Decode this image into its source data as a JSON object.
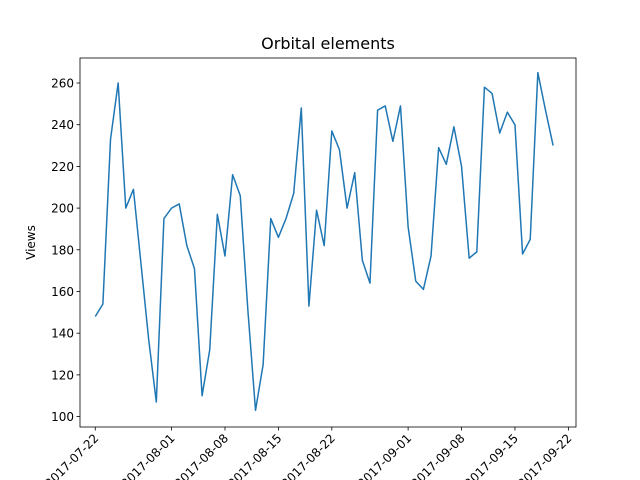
{
  "chart_data": {
    "type": "line",
    "title": "Orbital elements",
    "xlabel": "",
    "ylabel": "Views",
    "ylim": [
      95,
      272
    ],
    "xlim": [
      "2017-07-20",
      "2017-09-23"
    ],
    "grid": false,
    "x_ticks": [
      "2017-07-22",
      "2017-08-01",
      "2017-08-08",
      "2017-08-15",
      "2017-08-22",
      "2017-09-01",
      "2017-09-08",
      "2017-09-15",
      "2017-09-22"
    ],
    "y_ticks": [
      100,
      120,
      140,
      160,
      180,
      200,
      220,
      240,
      260
    ],
    "series": [
      {
        "color": "#1f77b4",
        "x": [
          "2017-07-22",
          "2017-07-23",
          "2017-07-24",
          "2017-07-25",
          "2017-07-26",
          "2017-07-27",
          "2017-07-28",
          "2017-07-29",
          "2017-07-30",
          "2017-07-31",
          "2017-08-01",
          "2017-08-02",
          "2017-08-03",
          "2017-08-04",
          "2017-08-05",
          "2017-08-06",
          "2017-08-07",
          "2017-08-08",
          "2017-08-09",
          "2017-08-10",
          "2017-08-11",
          "2017-08-12",
          "2017-08-13",
          "2017-08-14",
          "2017-08-15",
          "2017-08-16",
          "2017-08-17",
          "2017-08-18",
          "2017-08-19",
          "2017-08-20",
          "2017-08-21",
          "2017-08-22",
          "2017-08-23",
          "2017-08-24",
          "2017-08-25",
          "2017-08-26",
          "2017-08-27",
          "2017-08-28",
          "2017-08-29",
          "2017-08-30",
          "2017-08-31",
          "2017-09-01",
          "2017-09-02",
          "2017-09-03",
          "2017-09-04",
          "2017-09-05",
          "2017-09-06",
          "2017-09-07",
          "2017-09-08",
          "2017-09-09",
          "2017-09-10",
          "2017-09-11",
          "2017-09-12",
          "2017-09-13",
          "2017-09-14",
          "2017-09-15",
          "2017-09-16",
          "2017-09-17",
          "2017-09-18",
          "2017-09-19",
          "2017-09-20"
        ],
        "values": [
          148,
          154,
          233,
          260,
          200,
          209,
          173,
          137,
          107,
          195,
          200,
          202,
          182,
          171,
          110,
          132,
          197,
          177,
          216,
          206,
          151,
          103,
          125,
          195,
          186,
          195,
          207,
          248,
          153,
          199,
          182,
          237,
          228,
          200,
          217,
          175,
          164,
          247,
          249,
          232,
          249,
          191,
          165,
          161,
          177,
          229,
          221,
          239,
          220,
          176,
          179,
          258,
          255,
          236,
          246,
          240,
          178,
          185,
          265,
          247,
          230
        ]
      }
    ]
  }
}
